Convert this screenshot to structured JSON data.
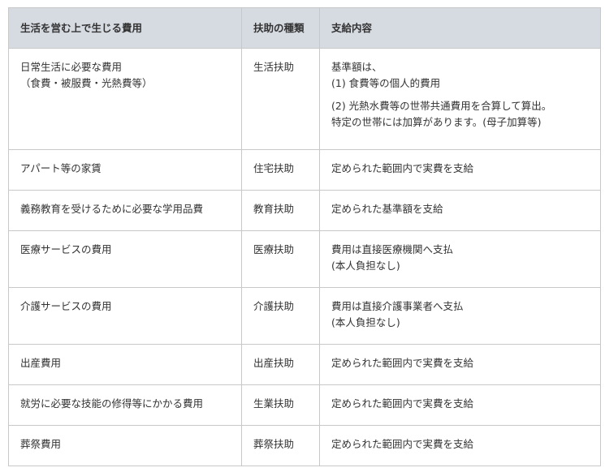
{
  "table": {
    "headers": [
      "生活を営む上で生じる費用",
      "扶助の種類",
      "支給内容"
    ],
    "rows": [
      {
        "cost": [
          "日常生活に必要な費用",
          "（食費・被服費・光熱費等）"
        ],
        "type": "生活扶助",
        "content": [
          "基準額は、",
          "(1) 食費等の個人的費用",
          "(2) 光熱水費等の世帯共通費用を合算して算出。",
          "特定の世帯には加算があります。(母子加算等)"
        ]
      },
      {
        "cost": [
          "アパート等の家賃"
        ],
        "type": "住宅扶助",
        "content": [
          "定められた範囲内で実費を支給"
        ]
      },
      {
        "cost": [
          "義務教育を受けるために必要な学用品費"
        ],
        "type": "教育扶助",
        "content": [
          "定められた基準額を支給"
        ]
      },
      {
        "cost": [
          "医療サービスの費用"
        ],
        "type": "医療扶助",
        "content": [
          "費用は直接医療機関へ支払",
          "(本人負担なし)"
        ]
      },
      {
        "cost": [
          "介護サービスの費用"
        ],
        "type": "介護扶助",
        "content": [
          "費用は直接介護事業者へ支払",
          "(本人負担なし)"
        ]
      },
      {
        "cost": [
          "出産費用"
        ],
        "type": "出産扶助",
        "content": [
          "定められた範囲内で実費を支給"
        ]
      },
      {
        "cost": [
          "就労に必要な技能の修得等にかかる費用"
        ],
        "type": "生業扶助",
        "content": [
          "定められた範囲内で実費を支給"
        ]
      },
      {
        "cost": [
          "葬祭費用"
        ],
        "type": "葬祭扶助",
        "content": [
          "定められた範囲内で実費を支給"
        ]
      }
    ]
  },
  "colors": {
    "header_bg": "#d6dae1",
    "border": "#c8c8c8",
    "text": "#333333"
  }
}
